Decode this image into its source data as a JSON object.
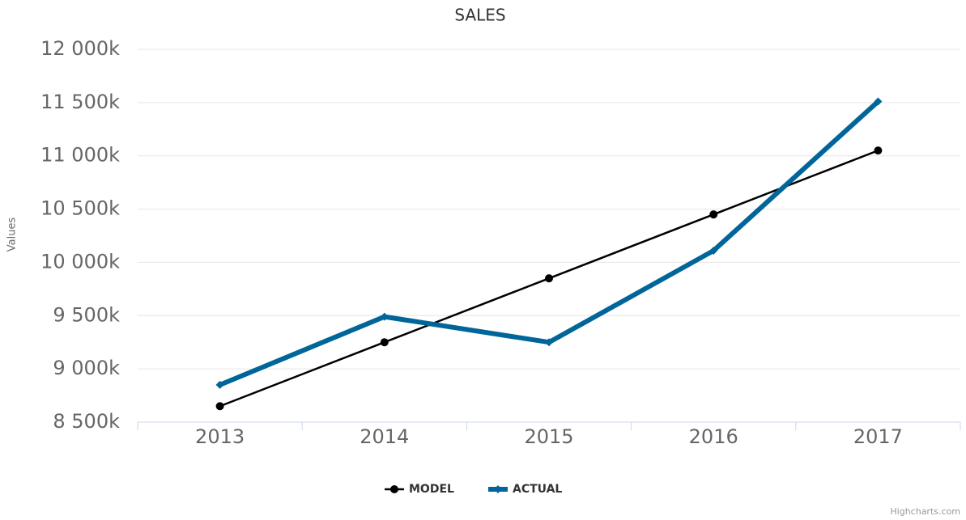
{
  "chart_data": {
    "type": "line",
    "title": "SALES",
    "y_label": "Values",
    "categories": [
      "2013",
      "2014",
      "2015",
      "2016",
      "2017"
    ],
    "series": [
      {
        "name": "MODEL",
        "color": "#000000",
        "values": [
          8650000,
          9250000,
          9850000,
          10450000,
          11050000
        ]
      },
      {
        "name": "ACTUAL",
        "color": "#006699",
        "values": [
          8850000,
          9490000,
          9250000,
          10110000,
          11510000
        ]
      }
    ],
    "ylim": [
      8500000,
      12000000
    ],
    "yticks": [
      {
        "value": 8500000,
        "label": "8 500k"
      },
      {
        "value": 9000000,
        "label": "9 000k"
      },
      {
        "value": 9500000,
        "label": "9 500k"
      },
      {
        "value": 10000000,
        "label": "10 000k"
      },
      {
        "value": 10500000,
        "label": "10 500k"
      },
      {
        "value": 11000000,
        "label": "11 000k"
      },
      {
        "value": 11500000,
        "label": "11 500k"
      },
      {
        "value": 12000000,
        "label": "12 000k"
      }
    ],
    "grid": true,
    "legend": "bottom",
    "credits": "Highcharts.com"
  }
}
